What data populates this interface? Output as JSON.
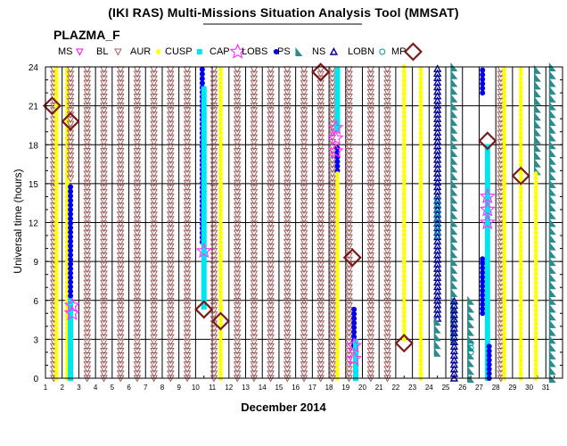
{
  "title": "(IKI RAS) Multi-Missions Situation Analysis Tool (MMSAT)",
  "subtitle": "PLAZMA_F",
  "chart_data": {
    "type": "scatter",
    "xlabel": "December 2014",
    "ylabel": "Universal time (hours)",
    "xlim": [
      1,
      32
    ],
    "ylim": [
      0,
      24
    ],
    "xticks": [
      1,
      2,
      3,
      4,
      5,
      6,
      7,
      8,
      9,
      10,
      11,
      12,
      13,
      14,
      15,
      16,
      17,
      18,
      19,
      20,
      21,
      22,
      23,
      24,
      25,
      26,
      27,
      28,
      29,
      30,
      31
    ],
    "yticks": [
      0,
      3,
      6,
      9,
      12,
      15,
      18,
      21,
      24
    ],
    "grid": true,
    "legend_position": "top",
    "legend": [
      {
        "label": "MS",
        "key": "MS"
      },
      {
        "label": "BL",
        "key": "BL"
      },
      {
        "label": "AUR",
        "key": "AUR"
      },
      {
        "label": "CUSP",
        "key": "CUSP"
      },
      {
        "label": "CAP",
        "key": "CAP"
      },
      {
        "label": "LOBS",
        "key": "LOBS"
      },
      {
        "label": "PS",
        "key": "PS"
      },
      {
        "label": "NS",
        "key": "NS"
      },
      {
        "label": "LOBN",
        "key": "LOBN"
      },
      {
        "label": "MP",
        "key": "MP"
      }
    ],
    "styles": {
      "MS": {
        "color": "#ff00ff"
      },
      "BL": {
        "color": "#a06060"
      },
      "AUR": {
        "color": "#ffff00"
      },
      "CUSP": {
        "color": "#00e5ee"
      },
      "CAP": {
        "color": "#ff33ff"
      },
      "LOBS": {
        "color": "#0000ee"
      },
      "PS": {
        "color": "#2e8b8b"
      },
      "NS": {
        "color": "#000099"
      },
      "LOBN": {
        "color": "#009999"
      },
      "MP": {
        "color": "#7a1a1a"
      }
    },
    "series": [
      {
        "name": "BL",
        "x": 1.5,
        "intervals": [
          [
            0,
            24
          ]
        ]
      },
      {
        "name": "AUR",
        "x": 1.65,
        "intervals": [
          [
            0,
            21
          ],
          [
            21.4,
            24
          ]
        ]
      },
      {
        "name": "AUR",
        "x": 2.3,
        "intervals": [
          [
            0,
            24
          ]
        ]
      },
      {
        "name": "BL",
        "x": 2.5,
        "intervals": [
          [
            15.4,
            24
          ]
        ]
      },
      {
        "name": "LOBS",
        "x": 2.5,
        "intervals": [
          [
            6,
            15
          ]
        ]
      },
      {
        "name": "CUSP",
        "x": 2.5,
        "intervals": [
          [
            0,
            6
          ]
        ]
      },
      {
        "name": "BL",
        "x": 3.5,
        "intervals": [
          [
            0,
            24
          ]
        ]
      },
      {
        "name": "BL",
        "x": 4.5,
        "intervals": [
          [
            0,
            24
          ]
        ]
      },
      {
        "name": "BL",
        "x": 5.5,
        "intervals": [
          [
            0,
            24
          ]
        ]
      },
      {
        "name": "BL",
        "x": 6.5,
        "intervals": [
          [
            0,
            24
          ]
        ]
      },
      {
        "name": "BL",
        "x": 7.5,
        "intervals": [
          [
            0,
            24
          ]
        ]
      },
      {
        "name": "BL",
        "x": 8.5,
        "intervals": [
          [
            0,
            24
          ]
        ]
      },
      {
        "name": "BL",
        "x": 9.5,
        "intervals": [
          [
            0,
            24
          ]
        ]
      },
      {
        "name": "LOBS",
        "x": 10.4,
        "intervals": [
          [
            10.5,
            24
          ]
        ]
      },
      {
        "name": "CUSP",
        "x": 10.5,
        "intervals": [
          [
            5.5,
            22.5
          ]
        ]
      },
      {
        "name": "BL",
        "x": 11.1,
        "intervals": [
          [
            0,
            24
          ]
        ]
      },
      {
        "name": "AUR",
        "x": 11.5,
        "intervals": [
          [
            0,
            24
          ]
        ]
      },
      {
        "name": "BL",
        "x": 12.5,
        "intervals": [
          [
            0,
            24
          ]
        ]
      },
      {
        "name": "BL",
        "x": 13.5,
        "intervals": [
          [
            0,
            24
          ]
        ]
      },
      {
        "name": "BL",
        "x": 14.5,
        "intervals": [
          [
            0,
            24
          ]
        ]
      },
      {
        "name": "BL",
        "x": 15.5,
        "intervals": [
          [
            0,
            24
          ]
        ]
      },
      {
        "name": "BL",
        "x": 16.5,
        "intervals": [
          [
            0,
            24
          ]
        ]
      },
      {
        "name": "BL",
        "x": 17.5,
        "intervals": [
          [
            0,
            24
          ]
        ]
      },
      {
        "name": "BL",
        "x": 18.2,
        "intervals": [
          [
            0,
            24
          ]
        ]
      },
      {
        "name": "CUSP",
        "x": 18.5,
        "intervals": [
          [
            19.2,
            24
          ]
        ]
      },
      {
        "name": "LOBS",
        "x": 18.5,
        "intervals": [
          [
            16,
            18
          ]
        ]
      },
      {
        "name": "AUR",
        "x": 18.5,
        "intervals": [
          [
            0,
            15.8
          ]
        ]
      },
      {
        "name": "BL",
        "x": 19.2,
        "intervals": [
          [
            0,
            24
          ]
        ]
      },
      {
        "name": "LOBS",
        "x": 19.5,
        "intervals": [
          [
            2.5,
            5.5
          ]
        ]
      },
      {
        "name": "CUSP",
        "x": 19.6,
        "intervals": [
          [
            0,
            3
          ]
        ]
      },
      {
        "name": "BL",
        "x": 20.5,
        "intervals": [
          [
            0,
            24
          ]
        ]
      },
      {
        "name": "BL",
        "x": 21.5,
        "intervals": [
          [
            0,
            24
          ]
        ]
      },
      {
        "name": "AUR",
        "x": 22.5,
        "intervals": [
          [
            3,
            24
          ]
        ]
      },
      {
        "name": "AUR",
        "x": 23.5,
        "intervals": [
          [
            0,
            24
          ]
        ]
      },
      {
        "name": "NS",
        "x": 24.5,
        "intervals": [
          [
            4.6,
            24
          ]
        ]
      },
      {
        "name": "PS",
        "x": 24.5,
        "intervals": [
          [
            2,
            4.6
          ]
        ]
      },
      {
        "name": "LOBN",
        "x": 24.5,
        "intervals": [
          [
            11,
            14
          ]
        ]
      },
      {
        "name": "PS",
        "x": 25.5,
        "intervals": [
          [
            3,
            24
          ]
        ]
      },
      {
        "name": "NS",
        "x": 25.5,
        "intervals": [
          [
            0,
            6
          ]
        ]
      },
      {
        "name": "PS",
        "x": 26.5,
        "intervals": [
          [
            0,
            6.5
          ]
        ]
      },
      {
        "name": "LOBN",
        "x": 26.5,
        "intervals": [
          [
            2,
            3
          ]
        ]
      },
      {
        "name": "LOBS",
        "x": 27.2,
        "intervals": [
          [
            5,
            9.5
          ],
          [
            22,
            24
          ]
        ]
      },
      {
        "name": "CUSP",
        "x": 27.5,
        "intervals": [
          [
            0,
            18
          ]
        ]
      },
      {
        "name": "LOBS",
        "x": 27.6,
        "intervals": [
          [
            0,
            2.5
          ]
        ]
      },
      {
        "name": "BL",
        "x": 28.3,
        "intervals": [
          [
            0,
            24
          ]
        ]
      },
      {
        "name": "AUR",
        "x": 28.5,
        "intervals": [
          [
            0,
            24
          ]
        ]
      },
      {
        "name": "AUR",
        "x": 29.5,
        "intervals": [
          [
            0,
            24
          ]
        ]
      },
      {
        "name": "PS",
        "x": 30.5,
        "intervals": [
          [
            16,
            24
          ]
        ]
      },
      {
        "name": "AUR",
        "x": 30.4,
        "intervals": [
          [
            0,
            16
          ]
        ]
      },
      {
        "name": "PS",
        "x": 31.4,
        "intervals": [
          [
            0,
            24
          ]
        ]
      }
    ],
    "points": [
      {
        "name": "MP",
        "x": 1.4,
        "y": 21
      },
      {
        "name": "MP",
        "x": 2.5,
        "y": 19.8
      },
      {
        "name": "CAP",
        "x": 2.6,
        "y": 5.6
      },
      {
        "name": "CAP",
        "x": 2.6,
        "y": 5.0
      },
      {
        "name": "MP",
        "x": 10.5,
        "y": 5.3
      },
      {
        "name": "CAP",
        "x": 10.5,
        "y": 9.8
      },
      {
        "name": "MP",
        "x": 11.5,
        "y": 4.4
      },
      {
        "name": "MP",
        "x": 17.5,
        "y": 23.6
      },
      {
        "name": "CAP",
        "x": 18.4,
        "y": 19.3
      },
      {
        "name": "CAP",
        "x": 18.4,
        "y": 18.5
      },
      {
        "name": "CAP",
        "x": 18.4,
        "y": 17.5
      },
      {
        "name": "MP",
        "x": 19.4,
        "y": 9.3
      },
      {
        "name": "CAP",
        "x": 19.5,
        "y": 2.5
      },
      {
        "name": "CAP",
        "x": 19.5,
        "y": 1.5
      },
      {
        "name": "MP",
        "x": 22.5,
        "y": 2.7
      },
      {
        "name": "MP",
        "x": 27.5,
        "y": 18.3
      },
      {
        "name": "CAP",
        "x": 27.5,
        "y": 14.0
      },
      {
        "name": "CAP",
        "x": 27.5,
        "y": 13.0
      },
      {
        "name": "CAP",
        "x": 27.5,
        "y": 12.0
      },
      {
        "name": "MP",
        "x": 29.5,
        "y": 15.6
      }
    ]
  }
}
